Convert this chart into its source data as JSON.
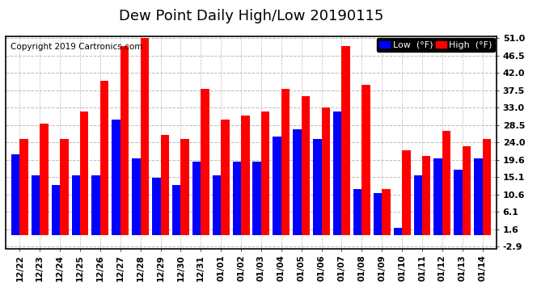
{
  "title": "Dew Point Daily High/Low 20190115",
  "copyright": "Copyright 2019 Cartronics.com",
  "categories": [
    "12/22",
    "12/23",
    "12/24",
    "12/25",
    "12/26",
    "12/27",
    "12/28",
    "12/29",
    "12/30",
    "12/31",
    "01/01",
    "01/02",
    "01/03",
    "01/04",
    "01/05",
    "01/06",
    "01/07",
    "01/08",
    "01/09",
    "01/10",
    "01/11",
    "01/12",
    "01/13",
    "01/14"
  ],
  "high_values": [
    25.0,
    29.0,
    25.0,
    32.0,
    40.0,
    49.0,
    51.0,
    26.0,
    25.0,
    38.0,
    30.0,
    31.0,
    32.0,
    38.0,
    36.0,
    33.0,
    49.0,
    39.0,
    12.0,
    22.0,
    20.5,
    27.0,
    23.0,
    25.0
  ],
  "low_values": [
    21.0,
    15.5,
    13.0,
    15.5,
    15.5,
    30.0,
    20.0,
    15.0,
    13.0,
    19.0,
    15.5,
    19.0,
    19.0,
    25.5,
    27.5,
    25.0,
    32.0,
    12.0,
    11.0,
    2.0,
    15.5,
    20.0,
    17.0,
    20.0
  ],
  "high_color": "#ff0000",
  "low_color": "#0000ff",
  "bg_color": "#ffffff",
  "plot_bg_color": "#ffffff",
  "grid_color": "#bbbbbb",
  "yticks": [
    -2.9,
    1.6,
    6.1,
    10.6,
    15.1,
    19.6,
    24.0,
    28.5,
    33.0,
    37.5,
    42.0,
    46.5,
    51.0
  ],
  "ylim_min": -2.9,
  "ylim_max": 51.0,
  "title_fontsize": 13,
  "legend_fontsize": 8,
  "copyright_fontsize": 7.5,
  "bar_width": 0.42
}
